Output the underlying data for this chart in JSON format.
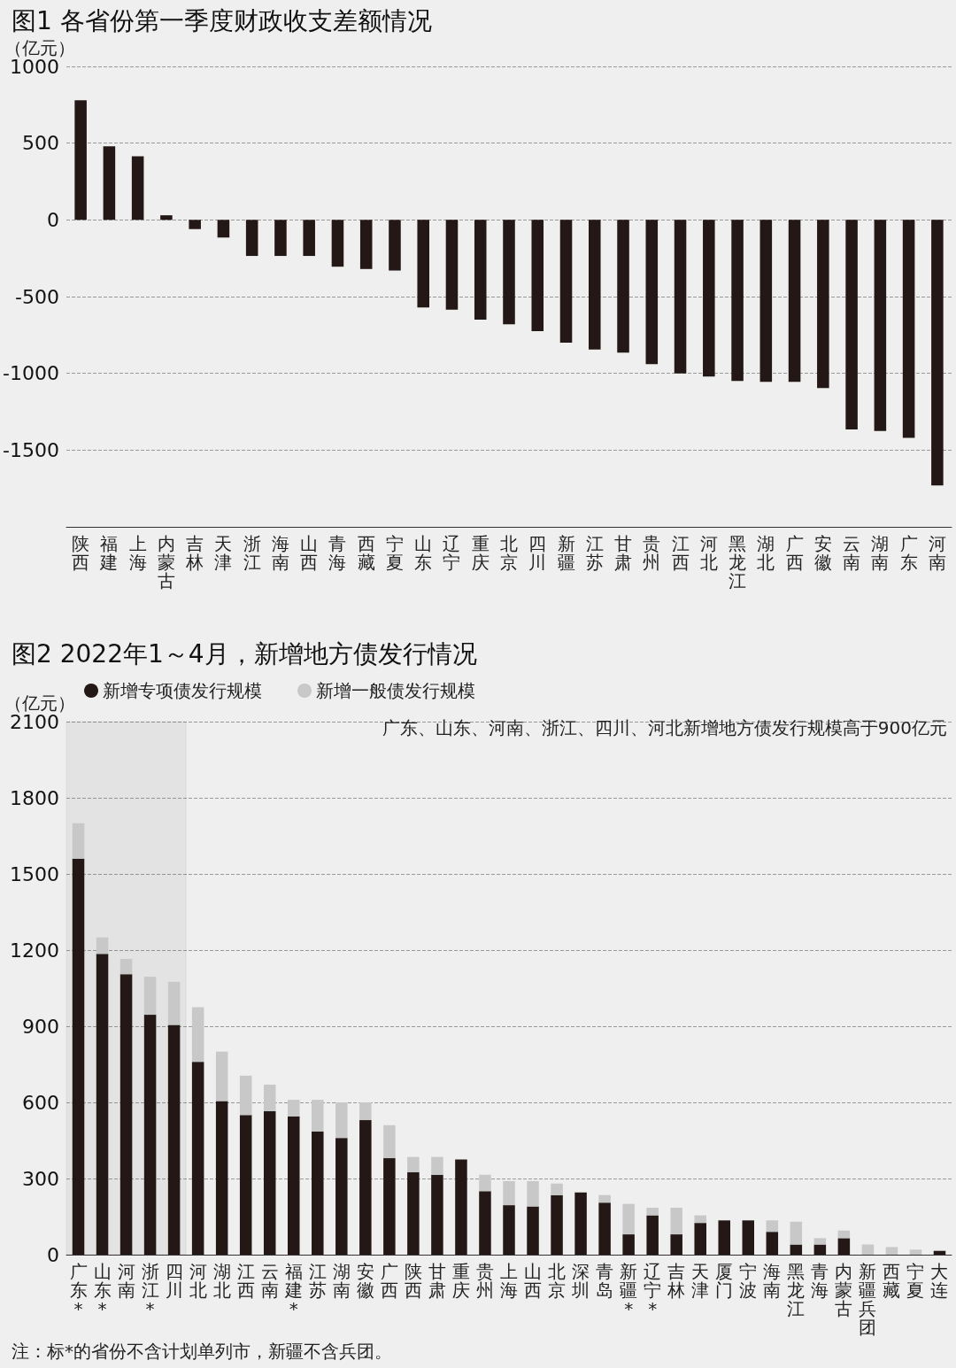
{
  "chart_data": [
    {
      "type": "bar",
      "title": "图1 各省份第一季度财政收支差额情况",
      "ylabel": "（亿元）",
      "categories": [
        "陕西",
        "福建",
        "上海",
        "内蒙古",
        "吉林",
        "天津",
        "浙江",
        "海南",
        "山西",
        "青海",
        "西藏",
        "宁夏",
        "山东",
        "辽宁",
        "重庆",
        "北京",
        "四川",
        "新疆",
        "江苏",
        "甘肃",
        "贵州",
        "江西",
        "河北",
        "黑龙江",
        "湖北",
        "广西",
        "安徽",
        "云南",
        "湖南",
        "广东",
        "河南"
      ],
      "values": [
        780,
        480,
        415,
        30,
        -60,
        -115,
        -235,
        -235,
        -235,
        -305,
        -320,
        -330,
        -570,
        -585,
        -650,
        -680,
        -725,
        -800,
        -845,
        -865,
        -940,
        -1000,
        -1020,
        -1050,
        -1055,
        -1055,
        -1095,
        -1365,
        -1375,
        -1420,
        -1730
      ],
      "color": "#231815",
      "ylim": [
        -2000,
        1000
      ],
      "yticks": [
        1000,
        500,
        0,
        -500,
        -1000,
        -1500
      ],
      "grid": "y"
    },
    {
      "type": "bar",
      "title": "图2 2022年1～4月，新增地方债发行情况",
      "subtitle": "广东、山东、河南、浙江、四川、河北新增地方债发行规模高于900亿元",
      "ylabel": "（亿元）",
      "categories": [
        "广东*",
        "山东*",
        "河南",
        "浙江*",
        "四川",
        "河北",
        "湖北",
        "江西",
        "云南",
        "福建*",
        "江苏",
        "湖南",
        "安徽",
        "广西",
        "陕西",
        "甘肃",
        "重庆",
        "贵州",
        "上海",
        "山西",
        "北京",
        "深圳",
        "青岛",
        "新疆*",
        "辽宁*",
        "吉林",
        "天津",
        "厦门",
        "宁波",
        "海南",
        "黑龙江",
        "青海",
        "内蒙古",
        "新疆兵团",
        "西藏",
        "宁夏",
        "大连"
      ],
      "stacked": true,
      "series": [
        {
          "name": "新增专项债发行规模",
          "color": "#231815",
          "values": [
            1560,
            1185,
            1105,
            945,
            905,
            760,
            605,
            550,
            565,
            545,
            485,
            460,
            530,
            380,
            325,
            315,
            375,
            250,
            195,
            190,
            235,
            245,
            205,
            80,
            155,
            80,
            125,
            135,
            135,
            90,
            40,
            40,
            65,
            0,
            0,
            0,
            15
          ]
        },
        {
          "name": "新增一般债发行规模",
          "color": "#c8c8c8",
          "values": [
            140,
            65,
            60,
            150,
            170,
            215,
            195,
            155,
            105,
            65,
            125,
            140,
            70,
            130,
            60,
            70,
            0,
            65,
            95,
            100,
            45,
            0,
            30,
            120,
            30,
            105,
            30,
            0,
            0,
            45,
            90,
            25,
            30,
            40,
            30,
            20,
            0
          ]
        }
      ],
      "bands": [
        {
          "axis": "x",
          "from": "广东*",
          "to": "四川",
          "color": "#555555"
        }
      ],
      "ylim": [
        0,
        2100
      ],
      "yticks": [
        0,
        300,
        600,
        900,
        1200,
        1500,
        1800,
        2100
      ],
      "grid": "y",
      "legend": "top left",
      "annotations": [
        "注：标*的省份不含计划单列市，新疆不含兵团。"
      ]
    }
  ]
}
